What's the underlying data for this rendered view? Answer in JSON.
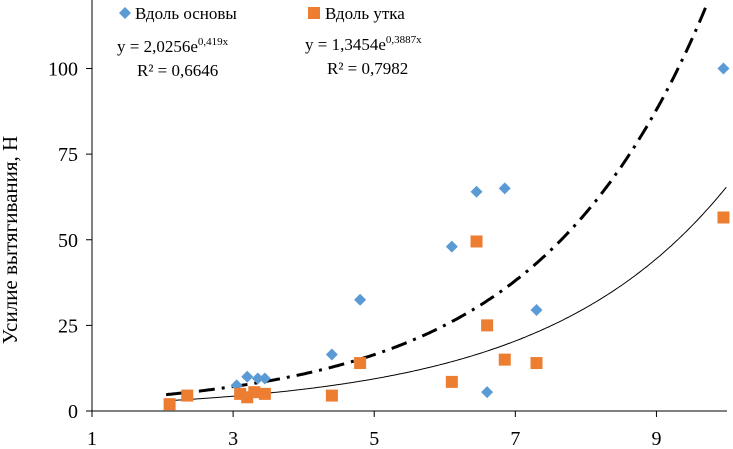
{
  "chart_data": {
    "type": "scatter",
    "title": "",
    "xlabel": "",
    "ylabel": "Усилие вытягивания, Н",
    "xlim": [
      1,
      10
    ],
    "ylim": [
      0,
      120
    ],
    "x_ticks": [
      1,
      3,
      5,
      7,
      9
    ],
    "x_tick_labels": [
      "1",
      "3",
      "5",
      "7",
      "9"
    ],
    "y_ticks": [
      0,
      25,
      50,
      75,
      100
    ],
    "y_tick_labels": [
      "0",
      "25",
      "50",
      "75",
      "100"
    ],
    "grid": false,
    "legend_position": "top-left",
    "series": [
      {
        "name": "Вдоль основы",
        "marker": "diamond",
        "color": "#5B9BD5",
        "points": [
          [
            3.05,
            7.5
          ],
          [
            3.2,
            10
          ],
          [
            3.35,
            9.5
          ],
          [
            3.45,
            9.5
          ],
          [
            4.4,
            16.5
          ],
          [
            4.8,
            32.5
          ],
          [
            6.1,
            48
          ],
          [
            6.45,
            64
          ],
          [
            6.6,
            5.5
          ],
          [
            6.85,
            65
          ],
          [
            7.3,
            29.5
          ],
          [
            9.95,
            100
          ]
        ],
        "trendline": {
          "type": "exponential",
          "a": 2.0256,
          "b": 0.419,
          "style": "dash-dot",
          "equation_prefix": "y = 2,0256e",
          "equation_exp": "0,419x",
          "r2": "R² = 0,6646"
        }
      },
      {
        "name": "Вдоль утка",
        "marker": "square",
        "color": "#ED7D31",
        "points": [
          [
            2.1,
            2
          ],
          [
            2.35,
            4.5
          ],
          [
            3.1,
            5
          ],
          [
            3.2,
            4
          ],
          [
            3.3,
            5.5
          ],
          [
            3.45,
            5
          ],
          [
            4.4,
            4.5
          ],
          [
            4.8,
            14
          ],
          [
            6.1,
            8.5
          ],
          [
            6.45,
            49.5
          ],
          [
            6.6,
            25
          ],
          [
            6.85,
            15
          ],
          [
            7.3,
            14
          ],
          [
            9.95,
            56.5
          ]
        ],
        "trendline": {
          "type": "exponential",
          "a": 1.3454,
          "b": 0.3887,
          "style": "solid",
          "equation_prefix": "y = 1,3454e",
          "equation_exp": "0,3887x",
          "r2": "R² = 0,7982"
        }
      }
    ]
  }
}
